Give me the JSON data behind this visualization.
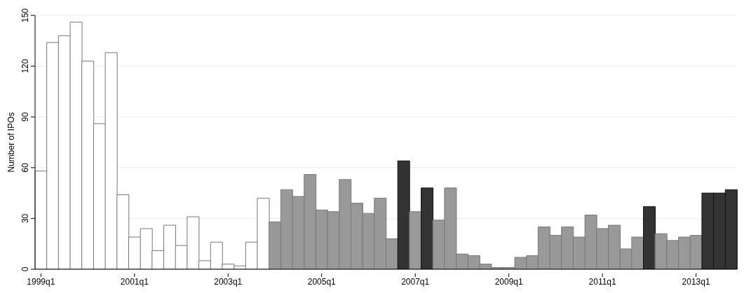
{
  "chart_data": {
    "type": "bar",
    "ylabel": "Number of IPOs",
    "categories": [
      "1999q1",
      null,
      null,
      null,
      null,
      null,
      null,
      null,
      "2001q1",
      null,
      null,
      null,
      null,
      null,
      null,
      null,
      "2003q1",
      null,
      null,
      null,
      null,
      null,
      null,
      null,
      "2005q1",
      null,
      null,
      null,
      null,
      null,
      null,
      null,
      "2007q1",
      null,
      null,
      null,
      null,
      null,
      null,
      null,
      "2009q1",
      null,
      null,
      null,
      null,
      null,
      null,
      null,
      "2011q1",
      null,
      null,
      null,
      null,
      null,
      null,
      null,
      "2013q1",
      null,
      null,
      null
    ],
    "values": [
      58,
      134,
      138,
      146,
      123,
      86,
      128,
      44,
      19,
      24,
      11,
      26,
      14,
      31,
      5,
      16,
      3,
      2,
      16,
      42,
      28,
      47,
      43,
      56,
      35,
      34,
      53,
      39,
      33,
      42,
      18,
      64,
      34,
      48,
      29,
      48,
      9,
      8,
      3,
      1,
      1,
      7,
      8,
      25,
      20,
      25,
      19,
      32,
      24,
      26,
      12,
      19,
      37,
      21,
      17,
      19,
      20,
      45,
      45,
      47
    ],
    "colors": [
      "#ffffff",
      "#ffffff",
      "#ffffff",
      "#ffffff",
      "#ffffff",
      "#ffffff",
      "#ffffff",
      "#ffffff",
      "#ffffff",
      "#ffffff",
      "#ffffff",
      "#ffffff",
      "#ffffff",
      "#ffffff",
      "#ffffff",
      "#ffffff",
      "#ffffff",
      "#ffffff",
      "#ffffff",
      "#ffffff",
      "#999999",
      "#999999",
      "#999999",
      "#999999",
      "#999999",
      "#999999",
      "#999999",
      "#999999",
      "#999999",
      "#999999",
      "#999999",
      "#333333",
      "#999999",
      "#333333",
      "#999999",
      "#999999",
      "#999999",
      "#999999",
      "#999999",
      "#999999",
      "#999999",
      "#999999",
      "#999999",
      "#999999",
      "#999999",
      "#999999",
      "#999999",
      "#999999",
      "#999999",
      "#999999",
      "#999999",
      "#999999",
      "#333333",
      "#999999",
      "#999999",
      "#999999",
      "#999999",
      "#333333",
      "#333333",
      "#333333"
    ],
    "ylim": [
      0,
      150
    ],
    "yticks": [
      0,
      30,
      60,
      90,
      120,
      150
    ],
    "grid": "y"
  }
}
